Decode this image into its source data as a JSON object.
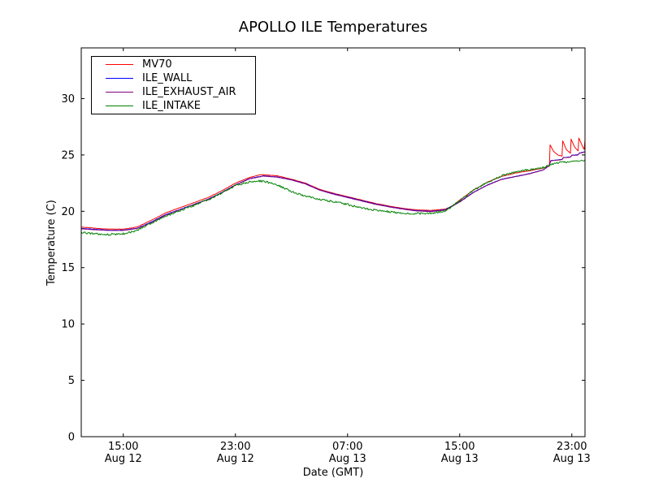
{
  "chart": {
    "title": "APOLLO ILE Temperatures",
    "xlabel": "Date (GMT)",
    "ylabel": "Temperature (C)"
  },
  "chart_data": {
    "type": "line",
    "title": "APOLLO ILE Temperatures",
    "xlabel": "Date (GMT)",
    "ylabel": "Temperature (C)",
    "grid": false,
    "legend_position": "upper left",
    "x_unit": "hours, 0 = Aug 12 12:00 GMT",
    "xlim": [
      0,
      35.94
    ],
    "ylim": [
      0,
      34.5
    ],
    "yticks": [
      0,
      5,
      10,
      15,
      20,
      25,
      30
    ],
    "xticks": [
      {
        "t": 3,
        "time": "15:00",
        "date": "Aug 12"
      },
      {
        "t": 11,
        "time": "23:00",
        "date": "Aug 12"
      },
      {
        "t": 19,
        "time": "07:00",
        "date": "Aug 13"
      },
      {
        "t": 27,
        "time": "15:00",
        "date": "Aug 13"
      },
      {
        "t": 35,
        "time": "23:00",
        "date": "Aug 13"
      }
    ],
    "series": [
      {
        "name": "MV70",
        "color": "#ff0000",
        "noise": 0.012,
        "points": [
          [
            0,
            18.6
          ],
          [
            0.5,
            18.55
          ],
          [
            1,
            18.5
          ],
          [
            1.5,
            18.45
          ],
          [
            2,
            18.42
          ],
          [
            3,
            18.42
          ],
          [
            3.5,
            18.5
          ],
          [
            4,
            18.62
          ],
          [
            5,
            19.2
          ],
          [
            6,
            19.85
          ],
          [
            7,
            20.3
          ],
          [
            8,
            20.75
          ],
          [
            9,
            21.2
          ],
          [
            10,
            21.8
          ],
          [
            11,
            22.5
          ],
          [
            12,
            23.0
          ],
          [
            12.8,
            23.25
          ],
          [
            13.5,
            23.2
          ],
          [
            14,
            23.15
          ],
          [
            15,
            22.85
          ],
          [
            16,
            22.5
          ],
          [
            17,
            21.95
          ],
          [
            18,
            21.6
          ],
          [
            19,
            21.3
          ],
          [
            20,
            21.0
          ],
          [
            21,
            20.7
          ],
          [
            22,
            20.45
          ],
          [
            23,
            20.25
          ],
          [
            24,
            20.12
          ],
          [
            25,
            20.08
          ],
          [
            26,
            20.2
          ],
          [
            26.5,
            20.5
          ],
          [
            27,
            21.0
          ],
          [
            28,
            21.9
          ],
          [
            29,
            22.6
          ],
          [
            30,
            23.1
          ],
          [
            31,
            23.4
          ],
          [
            32,
            23.6
          ],
          [
            33,
            23.85
          ],
          [
            33.4,
            24.0
          ],
          [
            33.45,
            25.9
          ],
          [
            33.7,
            25.3
          ],
          [
            34.0,
            25.0
          ],
          [
            34.3,
            24.9
          ],
          [
            34.35,
            26.25
          ],
          [
            34.6,
            25.5
          ],
          [
            34.9,
            25.15
          ],
          [
            34.95,
            26.4
          ],
          [
            35.2,
            25.7
          ],
          [
            35.45,
            25.35
          ],
          [
            35.5,
            26.5
          ],
          [
            35.75,
            25.8
          ],
          [
            35.88,
            25.5
          ],
          [
            35.94,
            26.3
          ]
        ]
      },
      {
        "name": "ILE_WALL",
        "color": "#0000ff",
        "noise": 0.012,
        "points": [
          [
            0,
            18.48
          ],
          [
            1,
            18.4
          ],
          [
            2,
            18.32
          ],
          [
            3,
            18.32
          ],
          [
            4,
            18.5
          ],
          [
            5,
            19.05
          ],
          [
            6,
            19.7
          ],
          [
            7,
            20.15
          ],
          [
            8,
            20.6
          ],
          [
            9,
            21.05
          ],
          [
            10,
            21.65
          ],
          [
            11,
            22.35
          ],
          [
            12,
            22.9
          ],
          [
            13,
            23.15
          ],
          [
            13.5,
            23.1
          ],
          [
            14,
            23.05
          ],
          [
            15,
            22.8
          ],
          [
            16,
            22.45
          ],
          [
            17,
            21.9
          ],
          [
            18,
            21.55
          ],
          [
            19,
            21.25
          ],
          [
            20,
            20.95
          ],
          [
            21,
            20.65
          ],
          [
            22,
            20.4
          ],
          [
            23,
            20.2
          ],
          [
            24,
            20.05
          ],
          [
            25,
            20.0
          ],
          [
            26,
            20.15
          ],
          [
            27,
            20.85
          ],
          [
            28,
            21.7
          ],
          [
            29,
            22.35
          ],
          [
            30,
            22.85
          ],
          [
            31,
            23.1
          ],
          [
            32,
            23.35
          ],
          [
            33,
            23.7
          ],
          [
            33.4,
            24.1
          ],
          [
            33.5,
            24.5
          ],
          [
            34.3,
            24.6
          ],
          [
            34.4,
            24.78
          ],
          [
            34.9,
            24.82
          ],
          [
            35.0,
            24.98
          ],
          [
            35.45,
            25.02
          ],
          [
            35.55,
            25.18
          ],
          [
            35.94,
            25.28
          ]
        ]
      },
      {
        "name": "ILE_EXHAUST_AIR",
        "color": "#800080",
        "noise": 0.012,
        "points": [
          [
            0,
            18.44
          ],
          [
            1,
            18.36
          ],
          [
            2,
            18.3
          ],
          [
            3,
            18.3
          ],
          [
            4,
            18.48
          ],
          [
            5,
            19.0
          ],
          [
            6,
            19.66
          ],
          [
            7,
            20.12
          ],
          [
            8,
            20.58
          ],
          [
            9,
            21.02
          ],
          [
            10,
            21.62
          ],
          [
            11,
            22.32
          ],
          [
            12,
            22.88
          ],
          [
            13,
            23.12
          ],
          [
            14,
            23.02
          ],
          [
            15,
            22.78
          ],
          [
            16,
            22.42
          ],
          [
            17,
            21.88
          ],
          [
            18,
            21.52
          ],
          [
            19,
            21.22
          ],
          [
            20,
            20.92
          ],
          [
            21,
            20.62
          ],
          [
            22,
            20.38
          ],
          [
            23,
            20.18
          ],
          [
            24,
            20.02
          ],
          [
            25,
            19.98
          ],
          [
            26,
            20.12
          ],
          [
            27,
            20.82
          ],
          [
            28,
            21.68
          ],
          [
            29,
            22.33
          ],
          [
            30,
            22.83
          ],
          [
            31,
            23.08
          ],
          [
            32,
            23.33
          ],
          [
            33,
            23.68
          ],
          [
            33.4,
            24.08
          ],
          [
            33.5,
            24.48
          ],
          [
            34.3,
            24.58
          ],
          [
            34.4,
            24.76
          ],
          [
            34.9,
            24.8
          ],
          [
            35.0,
            24.96
          ],
          [
            35.45,
            25.0
          ],
          [
            35.55,
            25.16
          ],
          [
            35.94,
            25.26
          ]
        ]
      },
      {
        "name": "ILE_INTAKE",
        "color": "#008000",
        "noise": 0.09,
        "points": [
          [
            0,
            18.12
          ],
          [
            1,
            18.0
          ],
          [
            2,
            17.95
          ],
          [
            3,
            18.0
          ],
          [
            4,
            18.3
          ],
          [
            5,
            18.95
          ],
          [
            6,
            19.55
          ],
          [
            7,
            20.05
          ],
          [
            8,
            20.5
          ],
          [
            9,
            21.0
          ],
          [
            10,
            21.6
          ],
          [
            11,
            22.3
          ],
          [
            12,
            22.6
          ],
          [
            12.5,
            22.7
          ],
          [
            13,
            22.65
          ],
          [
            14,
            22.35
          ],
          [
            15,
            21.75
          ],
          [
            16,
            21.35
          ],
          [
            17,
            21.05
          ],
          [
            18,
            20.85
          ],
          [
            19,
            20.6
          ],
          [
            20,
            20.3
          ],
          [
            21,
            20.1
          ],
          [
            22,
            19.95
          ],
          [
            23,
            19.85
          ],
          [
            24,
            19.8
          ],
          [
            25,
            19.82
          ],
          [
            26,
            20.05
          ],
          [
            27,
            20.9
          ],
          [
            28,
            21.9
          ],
          [
            29,
            22.6
          ],
          [
            30,
            23.15
          ],
          [
            31,
            23.5
          ],
          [
            32,
            23.7
          ],
          [
            33,
            23.9
          ],
          [
            33.6,
            24.2
          ],
          [
            34,
            24.3
          ],
          [
            34.5,
            24.35
          ],
          [
            35,
            24.4
          ],
          [
            35.5,
            24.45
          ],
          [
            35.94,
            24.55
          ]
        ]
      }
    ]
  }
}
